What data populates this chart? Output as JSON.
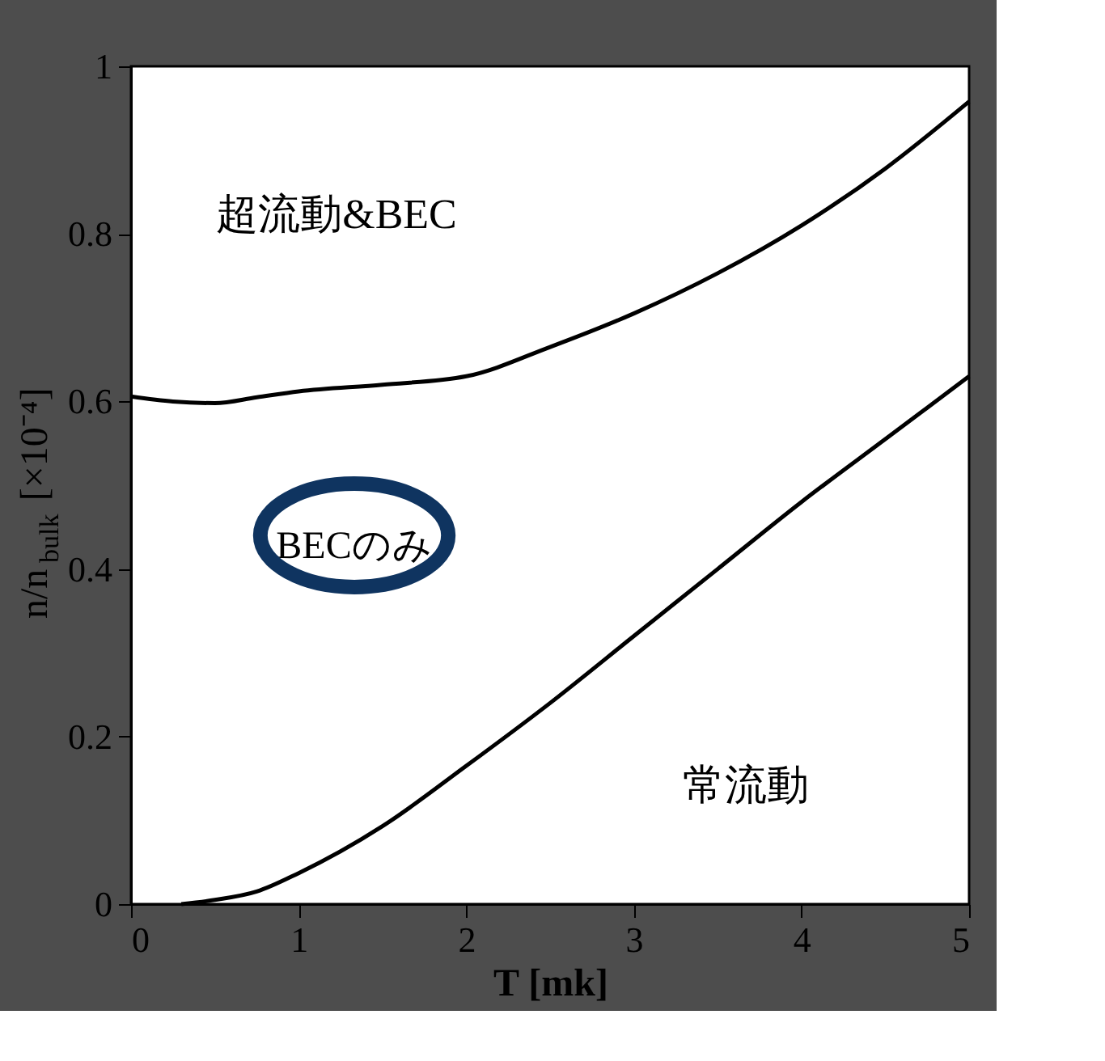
{
  "chart_data": {
    "type": "line",
    "xlabel": "T [mk]",
    "ylabel": "n/n$_{bulk}$ [×10⁻⁴]",
    "xlim": [
      0,
      5
    ],
    "ylim": [
      0,
      1
    ],
    "xticks": [
      0,
      1,
      2,
      3,
      4,
      5
    ],
    "yticks": [
      0,
      0.2,
      0.4,
      0.6,
      0.8,
      1
    ],
    "grid": false,
    "marker": "none",
    "line_style": "solid",
    "series": [
      {
        "color": "#000000",
        "x": [
          0,
          0.25,
          0.5,
          0.75,
          1,
          1.5,
          2,
          2.5,
          3,
          3.5,
          4,
          4.5,
          5
        ],
        "values": [
          0.606,
          0.6,
          0.598,
          0.605,
          0.612,
          0.62,
          0.63,
          0.665,
          0.705,
          0.753,
          0.81,
          0.878,
          0.958
        ]
      },
      {
        "color": "#000000",
        "x": [
          0.3,
          0.5,
          0.75,
          1,
          1.5,
          2,
          2.5,
          3,
          3.5,
          4,
          4.5,
          5
        ],
        "values": [
          0,
          0.005,
          0.015,
          0.037,
          0.093,
          0.165,
          0.24,
          0.32,
          0.4,
          0.48,
          0.555,
          0.63
        ]
      }
    ],
    "annotations": [
      "超流動&BEC",
      "BECのみ",
      "常流動"
    ]
  }
}
